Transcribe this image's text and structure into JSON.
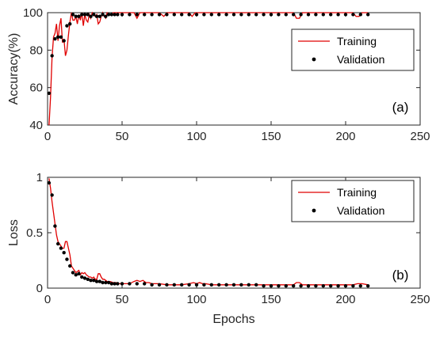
{
  "chart_data": [
    {
      "type": "line",
      "panel_label": "(a)",
      "ylabel": "Accuracy(%)",
      "xlabel": "",
      "xlim": [
        0,
        250
      ],
      "ylim": [
        40,
        100
      ],
      "xticks": [
        0,
        50,
        100,
        150,
        200,
        250
      ],
      "yticks": [
        40,
        60,
        80,
        100
      ],
      "legend_position": "top-right",
      "series": [
        {
          "name": "Training",
          "style": "line",
          "color": "#e00000",
          "x": [
            1,
            2,
            3,
            4,
            5,
            6,
            7,
            8,
            9,
            10,
            11,
            12,
            13,
            14,
            15,
            16,
            17,
            18,
            19,
            20,
            21,
            22,
            23,
            24,
            25,
            26,
            27,
            28,
            29,
            30,
            31,
            32,
            33,
            34,
            35,
            36,
            37,
            38,
            39,
            40,
            42,
            44,
            46,
            48,
            50,
            55,
            58,
            60,
            62,
            64,
            66,
            70,
            75,
            78,
            80,
            82,
            84,
            90,
            95,
            97,
            99,
            101,
            103,
            110,
            120,
            130,
            140,
            150,
            160,
            165,
            167,
            169,
            171,
            175,
            180,
            190,
            200,
            205,
            207,
            209,
            211,
            215
          ],
          "y": [
            40,
            55,
            76,
            87,
            89,
            94,
            85,
            93,
            97,
            84,
            86,
            77,
            80,
            88,
            95,
            100,
            96,
            96,
            98,
            94,
            99,
            96,
            100,
            93,
            99,
            96,
            95,
            99,
            97,
            100,
            99,
            98,
            99,
            94,
            95,
            98,
            100,
            98,
            97,
            100,
            99,
            100,
            100,
            100,
            100,
            100,
            100,
            97,
            100,
            100,
            100,
            100,
            100,
            98,
            100,
            100,
            100,
            100,
            100,
            98,
            100,
            100,
            100,
            100,
            100,
            100,
            100,
            100,
            100,
            100,
            97,
            97,
            100,
            100,
            100,
            100,
            100,
            100,
            98,
            98,
            100,
            100
          ]
        },
        {
          "name": "Validation",
          "style": "dots",
          "color": "#000000",
          "x": [
            1,
            3,
            5,
            7,
            9,
            11,
            13,
            15,
            17,
            19,
            21,
            23,
            25,
            27,
            29,
            31,
            33,
            35,
            37,
            39,
            41,
            43,
            45,
            47,
            50,
            55,
            60,
            65,
            70,
            75,
            80,
            85,
            90,
            95,
            100,
            105,
            110,
            115,
            120,
            125,
            130,
            135,
            140,
            145,
            150,
            155,
            160,
            165,
            170,
            175,
            180,
            185,
            190,
            195,
            200,
            205,
            210,
            215
          ],
          "y": [
            57,
            77,
            86,
            87,
            87,
            85,
            93,
            94,
            99,
            98,
            98,
            99,
            99,
            99,
            98,
            99,
            98,
            98,
            99,
            98,
            99,
            99,
            99,
            99,
            99,
            99,
            99,
            99,
            99,
            99,
            99,
            99,
            99,
            99,
            99,
            99,
            99,
            99,
            99,
            99,
            99,
            99,
            99,
            99,
            99,
            99,
            99,
            99,
            99,
            99,
            99,
            99,
            99,
            99,
            99,
            99,
            99,
            99
          ]
        }
      ]
    },
    {
      "type": "line",
      "panel_label": "(b)",
      "ylabel": "Loss",
      "xlabel": "Epochs",
      "xlim": [
        0,
        250
      ],
      "ylim": [
        0,
        1
      ],
      "xticks": [
        0,
        50,
        100,
        150,
        200,
        250
      ],
      "yticks": [
        0,
        0.5,
        1
      ],
      "legend_position": "top-right",
      "series": [
        {
          "name": "Training",
          "style": "line",
          "color": "#e00000",
          "x": [
            1,
            2,
            3,
            4,
            5,
            6,
            7,
            8,
            9,
            10,
            11,
            12,
            13,
            14,
            15,
            16,
            17,
            18,
            19,
            20,
            21,
            22,
            23,
            24,
            25,
            26,
            27,
            28,
            29,
            30,
            31,
            32,
            33,
            34,
            35,
            36,
            37,
            38,
            39,
            40,
            42,
            44,
            46,
            48,
            50,
            55,
            58,
            60,
            62,
            64,
            66,
            68,
            70,
            75,
            80,
            85,
            90,
            95,
            98,
            100,
            102,
            104,
            106,
            110,
            120,
            130,
            140,
            150,
            160,
            165,
            167,
            169,
            171,
            175,
            180,
            190,
            200,
            205,
            208,
            211,
            215
          ],
          "y": [
            0.99,
            0.9,
            0.78,
            0.68,
            0.58,
            0.48,
            0.42,
            0.4,
            0.38,
            0.36,
            0.36,
            0.42,
            0.42,
            0.36,
            0.3,
            0.2,
            0.18,
            0.16,
            0.14,
            0.15,
            0.16,
            0.12,
            0.14,
            0.13,
            0.14,
            0.12,
            0.11,
            0.1,
            0.1,
            0.09,
            0.1,
            0.08,
            0.08,
            0.13,
            0.13,
            0.1,
            0.08,
            0.08,
            0.07,
            0.06,
            0.06,
            0.05,
            0.05,
            0.04,
            0.04,
            0.04,
            0.06,
            0.07,
            0.06,
            0.07,
            0.05,
            0.05,
            0.04,
            0.04,
            0.03,
            0.03,
            0.03,
            0.04,
            0.05,
            0.04,
            0.05,
            0.04,
            0.04,
            0.03,
            0.03,
            0.03,
            0.03,
            0.03,
            0.03,
            0.03,
            0.05,
            0.05,
            0.03,
            0.03,
            0.03,
            0.03,
            0.03,
            0.03,
            0.04,
            0.04,
            0.03
          ]
        },
        {
          "name": "Validation",
          "style": "dots",
          "color": "#000000",
          "x": [
            1,
            3,
            5,
            7,
            9,
            11,
            13,
            15,
            17,
            19,
            21,
            23,
            25,
            27,
            29,
            31,
            33,
            35,
            37,
            39,
            41,
            43,
            45,
            47,
            50,
            55,
            60,
            65,
            70,
            75,
            80,
            85,
            90,
            95,
            100,
            105,
            110,
            115,
            120,
            125,
            130,
            135,
            140,
            145,
            150,
            155,
            160,
            165,
            170,
            175,
            180,
            185,
            190,
            195,
            200,
            205,
            210,
            215
          ],
          "y": [
            0.95,
            0.84,
            0.56,
            0.4,
            0.36,
            0.32,
            0.26,
            0.2,
            0.14,
            0.12,
            0.13,
            0.1,
            0.09,
            0.08,
            0.07,
            0.07,
            0.06,
            0.06,
            0.05,
            0.05,
            0.05,
            0.04,
            0.04,
            0.04,
            0.04,
            0.04,
            0.04,
            0.04,
            0.03,
            0.03,
            0.03,
            0.03,
            0.03,
            0.03,
            0.03,
            0.03,
            0.03,
            0.03,
            0.03,
            0.03,
            0.03,
            0.03,
            0.03,
            0.02,
            0.02,
            0.02,
            0.02,
            0.02,
            0.02,
            0.02,
            0.02,
            0.02,
            0.02,
            0.02,
            0.02,
            0.02,
            0.02,
            0.02
          ]
        }
      ]
    }
  ]
}
